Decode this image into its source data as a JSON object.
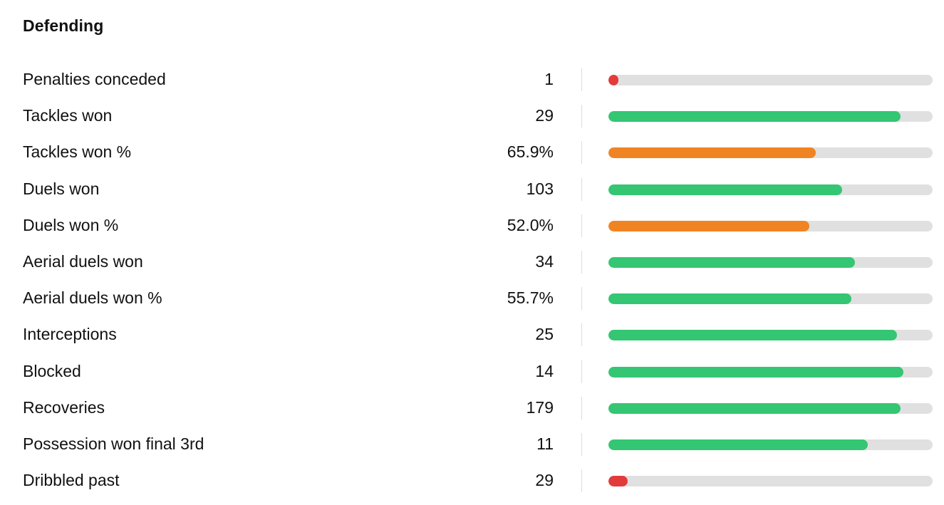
{
  "section": {
    "title": "Defending"
  },
  "colors": {
    "good": "#34c672",
    "average": "#f08423",
    "poor": "#e23b3b",
    "track": "#e0e0e0"
  },
  "stats": [
    {
      "label": "Penalties conceded",
      "value": "1",
      "fill_percent": 3,
      "rating": "poor"
    },
    {
      "label": "Tackles won",
      "value": "29",
      "fill_percent": 90,
      "rating": "good"
    },
    {
      "label": "Tackles won %",
      "value": "65.9%",
      "fill_percent": 64,
      "rating": "average"
    },
    {
      "label": "Duels won",
      "value": "103",
      "fill_percent": 72,
      "rating": "good"
    },
    {
      "label": "Duels won %",
      "value": "52.0%",
      "fill_percent": 62,
      "rating": "average"
    },
    {
      "label": "Aerial duels won",
      "value": "34",
      "fill_percent": 76,
      "rating": "good"
    },
    {
      "label": "Aerial duels won %",
      "value": "55.7%",
      "fill_percent": 75,
      "rating": "good"
    },
    {
      "label": "Interceptions",
      "value": "25",
      "fill_percent": 89,
      "rating": "good"
    },
    {
      "label": "Blocked",
      "value": "14",
      "fill_percent": 91,
      "rating": "good"
    },
    {
      "label": "Recoveries",
      "value": "179",
      "fill_percent": 90,
      "rating": "good"
    },
    {
      "label": "Possession won final 3rd",
      "value": "11",
      "fill_percent": 80,
      "rating": "good"
    },
    {
      "label": "Dribbled past",
      "value": "29",
      "fill_percent": 6,
      "rating": "poor"
    }
  ]
}
